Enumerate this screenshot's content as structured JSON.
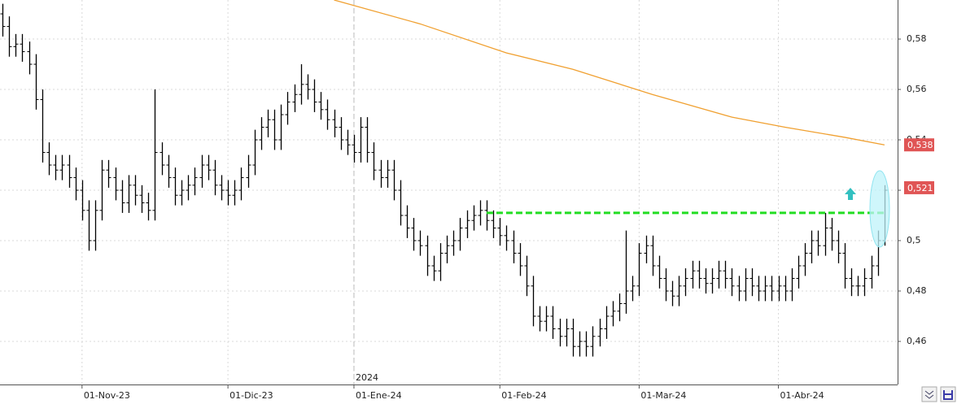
{
  "chart_data": {
    "type": "ohlc",
    "bar_color": "#000000",
    "open": [
      0.59,
      0.585,
      0.577,
      0.578,
      0.575,
      0.57,
      0.556,
      0.535,
      0.53,
      0.528,
      0.53,
      0.525,
      0.52,
      0.512,
      0.5,
      0.512,
      0.528,
      0.525,
      0.52,
      0.515,
      0.522,
      0.518,
      0.515,
      0.512,
      0.535,
      0.53,
      0.525,
      0.518,
      0.52,
      0.522,
      0.525,
      0.53,
      0.528,
      0.522,
      0.52,
      0.518,
      0.52,
      0.525,
      0.53,
      0.54,
      0.545,
      0.548,
      0.54,
      0.55,
      0.555,
      0.558,
      0.562,
      0.56,
      0.555,
      0.552,
      0.548,
      0.545,
      0.54,
      0.538,
      0.535,
      0.545,
      0.535,
      0.528,
      0.525,
      0.528,
      0.52,
      0.51,
      0.505,
      0.5,
      0.498,
      0.49,
      0.488,
      0.495,
      0.498,
      0.5,
      0.505,
      0.508,
      0.51,
      0.512,
      0.508,
      0.505,
      0.502,
      0.5,
      0.495,
      0.49,
      0.482,
      0.47,
      0.468,
      0.47,
      0.465,
      0.462,
      0.465,
      0.458,
      0.46,
      0.458,
      0.462,
      0.465,
      0.47,
      0.472,
      0.475,
      0.48,
      0.482,
      0.495,
      0.498,
      0.49,
      0.485,
      0.48,
      0.478,
      0.482,
      0.485,
      0.488,
      0.485,
      0.483,
      0.485,
      0.488,
      0.485,
      0.482,
      0.48,
      0.485,
      0.482,
      0.48,
      0.482,
      0.48,
      0.482,
      0.48,
      0.485,
      0.49,
      0.495,
      0.5,
      0.498,
      0.505,
      0.5,
      0.495,
      0.485,
      0.482,
      0.482,
      0.485,
      0.49,
      0.5
    ],
    "high": [
      0.594,
      0.589,
      0.582,
      0.582,
      0.579,
      0.574,
      0.56,
      0.539,
      0.534,
      0.534,
      0.534,
      0.529,
      0.524,
      0.516,
      0.516,
      0.532,
      0.532,
      0.529,
      0.524,
      0.526,
      0.526,
      0.522,
      0.519,
      0.56,
      0.539,
      0.534,
      0.529,
      0.524,
      0.526,
      0.529,
      0.534,
      0.534,
      0.532,
      0.526,
      0.524,
      0.524,
      0.529,
      0.534,
      0.544,
      0.549,
      0.552,
      0.552,
      0.554,
      0.559,
      0.562,
      0.57,
      0.566,
      0.564,
      0.559,
      0.556,
      0.552,
      0.549,
      0.544,
      0.542,
      0.549,
      0.549,
      0.539,
      0.532,
      0.532,
      0.532,
      0.524,
      0.514,
      0.509,
      0.504,
      0.502,
      0.494,
      0.499,
      0.502,
      0.504,
      0.509,
      0.512,
      0.514,
      0.516,
      0.516,
      0.512,
      0.509,
      0.506,
      0.504,
      0.499,
      0.494,
      0.486,
      0.474,
      0.474,
      0.474,
      0.469,
      0.469,
      0.469,
      0.464,
      0.464,
      0.466,
      0.469,
      0.474,
      0.476,
      0.479,
      0.504,
      0.486,
      0.499,
      0.502,
      0.502,
      0.494,
      0.489,
      0.484,
      0.486,
      0.489,
      0.492,
      0.492,
      0.489,
      0.489,
      0.492,
      0.492,
      0.489,
      0.486,
      0.489,
      0.489,
      0.486,
      0.486,
      0.486,
      0.486,
      0.486,
      0.489,
      0.494,
      0.499,
      0.504,
      0.504,
      0.511,
      0.509,
      0.504,
      0.499,
      0.489,
      0.486,
      0.489,
      0.494,
      0.504,
      0.522
    ],
    "low": [
      0.581,
      0.573,
      0.573,
      0.571,
      0.566,
      0.552,
      0.531,
      0.526,
      0.524,
      0.524,
      0.521,
      0.516,
      0.508,
      0.496,
      0.496,
      0.508,
      0.521,
      0.516,
      0.511,
      0.511,
      0.514,
      0.511,
      0.508,
      0.508,
      0.526,
      0.521,
      0.514,
      0.514,
      0.516,
      0.518,
      0.521,
      0.524,
      0.518,
      0.516,
      0.514,
      0.514,
      0.516,
      0.521,
      0.526,
      0.536,
      0.541,
      0.536,
      0.536,
      0.546,
      0.551,
      0.554,
      0.556,
      0.551,
      0.548,
      0.544,
      0.541,
      0.536,
      0.534,
      0.531,
      0.531,
      0.531,
      0.524,
      0.521,
      0.521,
      0.516,
      0.506,
      0.501,
      0.496,
      0.494,
      0.486,
      0.484,
      0.484,
      0.491,
      0.494,
      0.496,
      0.501,
      0.504,
      0.506,
      0.504,
      0.501,
      0.498,
      0.496,
      0.491,
      0.486,
      0.478,
      0.466,
      0.464,
      0.464,
      0.461,
      0.458,
      0.458,
      0.454,
      0.454,
      0.454,
      0.454,
      0.458,
      0.461,
      0.466,
      0.468,
      0.471,
      0.476,
      0.478,
      0.491,
      0.486,
      0.481,
      0.476,
      0.474,
      0.474,
      0.478,
      0.481,
      0.481,
      0.479,
      0.479,
      0.481,
      0.481,
      0.478,
      0.476,
      0.476,
      0.478,
      0.476,
      0.476,
      0.476,
      0.476,
      0.476,
      0.476,
      0.481,
      0.486,
      0.491,
      0.494,
      0.494,
      0.496,
      0.491,
      0.481,
      0.478,
      0.478,
      0.478,
      0.481,
      0.486,
      0.498
    ],
    "close": [
      0.585,
      0.577,
      0.578,
      0.575,
      0.57,
      0.556,
      0.535,
      0.53,
      0.528,
      0.53,
      0.525,
      0.52,
      0.512,
      0.5,
      0.512,
      0.528,
      0.525,
      0.52,
      0.515,
      0.522,
      0.518,
      0.515,
      0.512,
      0.535,
      0.53,
      0.525,
      0.518,
      0.52,
      0.522,
      0.525,
      0.53,
      0.528,
      0.522,
      0.52,
      0.518,
      0.52,
      0.525,
      0.53,
      0.54,
      0.545,
      0.548,
      0.54,
      0.55,
      0.555,
      0.558,
      0.562,
      0.56,
      0.555,
      0.552,
      0.548,
      0.545,
      0.54,
      0.538,
      0.535,
      0.545,
      0.535,
      0.528,
      0.525,
      0.528,
      0.52,
      0.51,
      0.505,
      0.5,
      0.498,
      0.49,
      0.488,
      0.495,
      0.498,
      0.5,
      0.505,
      0.508,
      0.51,
      0.512,
      0.508,
      0.505,
      0.502,
      0.5,
      0.495,
      0.49,
      0.482,
      0.47,
      0.468,
      0.47,
      0.465,
      0.462,
      0.465,
      0.458,
      0.46,
      0.458,
      0.462,
      0.465,
      0.47,
      0.472,
      0.475,
      0.48,
      0.482,
      0.495,
      0.498,
      0.49,
      0.485,
      0.48,
      0.478,
      0.482,
      0.485,
      0.488,
      0.485,
      0.483,
      0.485,
      0.488,
      0.485,
      0.482,
      0.48,
      0.485,
      0.482,
      0.48,
      0.482,
      0.48,
      0.482,
      0.48,
      0.485,
      0.49,
      0.495,
      0.5,
      0.498,
      0.505,
      0.5,
      0.495,
      0.485,
      0.482,
      0.482,
      0.485,
      0.49,
      0.5,
      0.52
    ],
    "ma": {
      "color": "#f0a030",
      "x": [
        50,
        63,
        76,
        86,
        98,
        110,
        118,
        127,
        133
      ],
      "values": [
        0.5955,
        0.586,
        0.5745,
        0.568,
        0.558,
        0.549,
        0.545,
        0.541,
        0.538
      ]
    },
    "hline": {
      "value": 0.511,
      "from": 73,
      "to": 133,
      "color": "#22dd22"
    },
    "price_labels": [
      {
        "value": 0.538,
        "label": "0,538"
      },
      {
        "value": 0.521,
        "label": "0,521"
      }
    ],
    "price_label_color": "#e05555",
    "annotation": "2024",
    "xlim": [
      -0.37,
      134.97
    ],
    "xticks": [
      {
        "value": 12,
        "label": "01-Nov-23"
      },
      {
        "value": 34,
        "label": "01-Dic-23"
      },
      {
        "value": 53,
        "label": "01-Ene-24"
      },
      {
        "value": 75,
        "label": "01-Feb-24"
      },
      {
        "value": 96,
        "label": "01-Mar-24"
      },
      {
        "value": 117,
        "label": "01-Abr-24"
      }
    ],
    "ylim": [
      0.4429,
      0.5955
    ],
    "yticks": [
      {
        "value": 0.46,
        "label": "0,46"
      },
      {
        "value": 0.48,
        "label": "0,48"
      },
      {
        "value": 0.5,
        "label": "0,5"
      },
      {
        "value": 0.52,
        "label": "0,52"
      },
      {
        "value": 0.54,
        "label": "0,54"
      },
      {
        "value": 0.56,
        "label": "0,56"
      },
      {
        "value": 0.58,
        "label": "0,58"
      }
    ],
    "grid": true
  }
}
